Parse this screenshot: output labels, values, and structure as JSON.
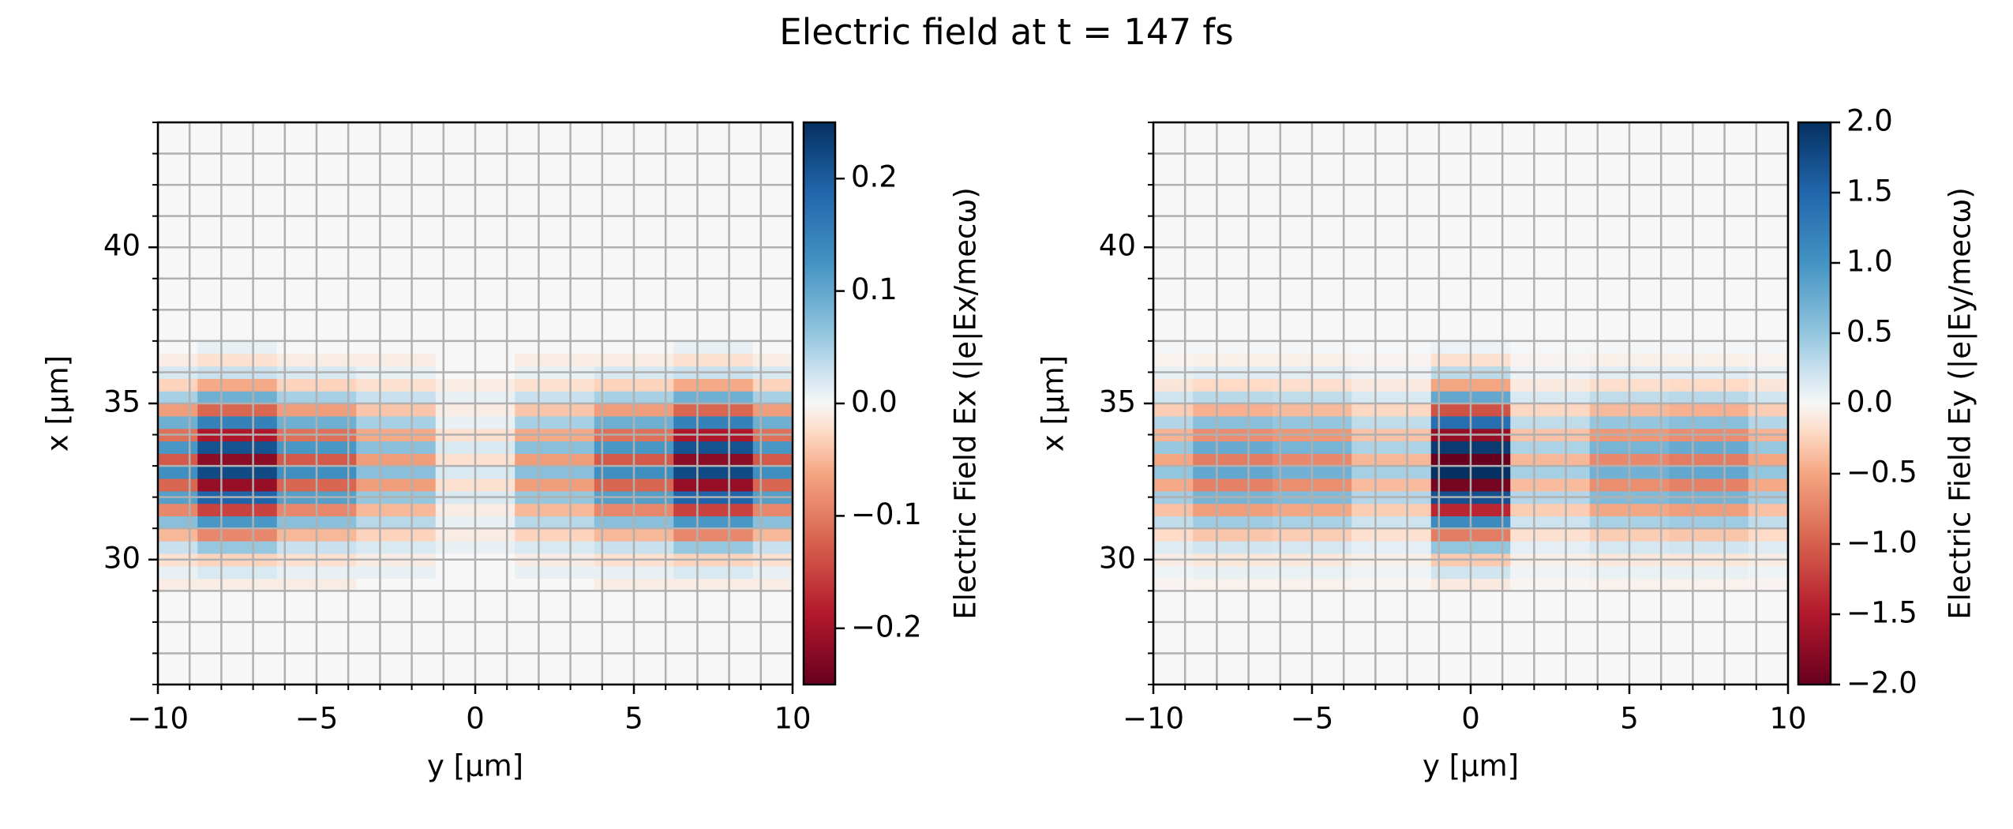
{
  "title": "Electric field at t = 147 fs",
  "chart_data": [
    {
      "type": "heatmap",
      "colormap": "RdBu",
      "grid": true,
      "xlabel": "y [µm]",
      "ylabel": "x [µm]",
      "colorbar_label": "Electric Field Ex (|e|Ex/mecω)",
      "xlim": [
        -10,
        10
      ],
      "ylim": [
        26,
        44
      ],
      "xticks": [
        {
          "value": -10,
          "label": "−10"
        },
        {
          "value": -5,
          "label": "−5"
        },
        0,
        5,
        10
      ],
      "yticks": [
        30,
        35,
        40
      ],
      "xminor": [
        -10,
        -9,
        -8,
        -7,
        -6,
        -5,
        -4,
        -3,
        -2,
        -1,
        0,
        1,
        2,
        3,
        4,
        5,
        6,
        7,
        8,
        9,
        10
      ],
      "yminor": [
        26,
        27,
        28,
        29,
        30,
        31,
        32,
        33,
        34,
        35,
        36,
        37,
        38,
        39,
        40,
        41,
        42,
        43,
        44
      ],
      "clim": [
        -0.25,
        0.25
      ],
      "cticks": [
        0.2,
        0.1,
        {
          "value": 0,
          "label": "0.0"
        },
        {
          "value": -0.1,
          "label": "−0.1"
        },
        {
          "value": -0.2,
          "label": "−0.2"
        }
      ],
      "x": [
        -10,
        -7.5,
        -5,
        -2.5,
        0,
        2.5,
        5,
        7.5,
        10
      ],
      "y": [
        29.2,
        29.6,
        30.0,
        30.4,
        30.8,
        31.2,
        31.6,
        32.0,
        32.4,
        32.8,
        33.2,
        33.6,
        34.0,
        34.4,
        34.8,
        35.2,
        35.6,
        36.0,
        36.4,
        36.8
      ],
      "z": [
        [
          -0.01,
          -0.01,
          -0.01,
          0,
          0,
          0,
          -0.01,
          -0.01,
          -0.01
        ],
        [
          0.01,
          0.02,
          0.01,
          0.01,
          0,
          0.01,
          0.01,
          0.02,
          0.01
        ],
        [
          -0.02,
          -0.03,
          -0.02,
          -0.01,
          0,
          -0.01,
          -0.02,
          -0.03,
          -0.02
        ],
        [
          0.03,
          0.06,
          0.03,
          0.02,
          0.01,
          0.02,
          0.03,
          0.06,
          0.03
        ],
        [
          -0.05,
          -0.09,
          -0.05,
          -0.03,
          -0.01,
          -0.03,
          -0.05,
          -0.09,
          -0.05
        ],
        [
          0.07,
          0.12,
          0.07,
          0.04,
          0.01,
          0.04,
          0.07,
          0.12,
          0.07
        ],
        [
          -0.09,
          -0.15,
          -0.09,
          -0.05,
          -0.01,
          -0.05,
          -0.09,
          -0.15,
          -0.09
        ],
        [
          0.11,
          0.19,
          0.11,
          0.06,
          0.02,
          0.06,
          0.11,
          0.19,
          0.11
        ],
        [
          -0.12,
          -0.21,
          -0.12,
          -0.07,
          -0.02,
          -0.07,
          -0.12,
          -0.21,
          -0.12
        ],
        [
          0.13,
          0.22,
          0.13,
          0.07,
          0.02,
          0.07,
          0.13,
          0.22,
          0.13
        ],
        [
          -0.13,
          -0.22,
          -0.13,
          -0.07,
          -0.02,
          -0.07,
          -0.13,
          -0.22,
          -0.13
        ],
        [
          0.12,
          0.21,
          0.12,
          0.07,
          0.02,
          0.07,
          0.12,
          0.21,
          0.12
        ],
        [
          -0.11,
          -0.19,
          -0.11,
          -0.06,
          -0.02,
          -0.06,
          -0.11,
          -0.19,
          -0.11
        ],
        [
          0.09,
          0.15,
          0.09,
          0.05,
          0.01,
          0.05,
          0.09,
          0.15,
          0.09
        ],
        [
          -0.07,
          -0.12,
          -0.07,
          -0.04,
          -0.01,
          -0.04,
          -0.07,
          -0.12,
          -0.07
        ],
        [
          0.05,
          0.09,
          0.05,
          0.03,
          0.01,
          0.03,
          0.05,
          0.09,
          0.05
        ],
        [
          -0.03,
          -0.06,
          -0.03,
          -0.02,
          -0.01,
          -0.02,
          -0.03,
          -0.06,
          -0.03
        ],
        [
          0.02,
          0.03,
          0.02,
          0.01,
          0,
          0.01,
          0.02,
          0.03,
          0.02
        ],
        [
          -0.01,
          -0.02,
          -0.01,
          -0.01,
          0,
          -0.01,
          -0.01,
          -0.02,
          -0.01
        ],
        [
          0,
          0.01,
          0,
          0,
          0,
          0,
          0,
          0.01,
          0
        ]
      ]
    },
    {
      "type": "heatmap",
      "colormap": "RdBu",
      "grid": true,
      "xlabel": "y [µm]",
      "ylabel": "x [µm]",
      "colorbar_label": "Electric Field Ey (|e|Ey/mecω)",
      "xlim": [
        -10,
        10
      ],
      "ylim": [
        26,
        44
      ],
      "xticks": [
        {
          "value": -10,
          "label": "−10"
        },
        {
          "value": -5,
          "label": "−5"
        },
        0,
        5,
        10
      ],
      "yticks": [
        30,
        35,
        40
      ],
      "xminor": [
        -10,
        -9,
        -8,
        -7,
        -6,
        -5,
        -4,
        -3,
        -2,
        -1,
        0,
        1,
        2,
        3,
        4,
        5,
        6,
        7,
        8,
        9,
        10
      ],
      "yminor": [
        26,
        27,
        28,
        29,
        30,
        31,
        32,
        33,
        34,
        35,
        36,
        37,
        38,
        39,
        40,
        41,
        42,
        43,
        44
      ],
      "clim": [
        -2,
        2
      ],
      "cticks": [
        {
          "value": 2,
          "label": "2.0"
        },
        1.5,
        {
          "value": 1,
          "label": "1.0"
        },
        0.5,
        {
          "value": 0,
          "label": "0.0"
        },
        {
          "value": -0.5,
          "label": "−0.5"
        },
        {
          "value": -1,
          "label": "−1.0"
        },
        {
          "value": -1.5,
          "label": "−1.5"
        },
        {
          "value": -2,
          "label": "−2.0"
        }
      ],
      "x": [
        -10,
        -7.5,
        -5,
        -2.5,
        0,
        2.5,
        5,
        7.5,
        10
      ],
      "y": [
        29.2,
        29.6,
        30.0,
        30.4,
        30.8,
        31.2,
        31.6,
        32.0,
        32.4,
        32.8,
        33.2,
        33.6,
        34.0,
        34.4,
        34.8,
        35.2,
        35.6,
        36.0,
        36.4,
        36.8
      ],
      "z": [
        [
          -0.03,
          -0.04,
          -0.04,
          -0.02,
          -0.1,
          -0.02,
          -0.04,
          -0.04,
          -0.03
        ],
        [
          0.05,
          0.08,
          0.07,
          0.04,
          0.2,
          0.04,
          0.07,
          0.08,
          0.05
        ],
        [
          -0.08,
          -0.12,
          -0.11,
          -0.06,
          -0.3,
          -0.06,
          -0.11,
          -0.12,
          -0.08
        ],
        [
          0.13,
          0.2,
          0.18,
          0.1,
          0.5,
          0.1,
          0.18,
          0.2,
          0.13
        ],
        [
          -0.2,
          -0.32,
          -0.28,
          -0.16,
          -0.8,
          -0.16,
          -0.28,
          -0.32,
          -0.2
        ],
        [
          0.28,
          0.44,
          0.39,
          0.22,
          1.1,
          0.22,
          0.39,
          0.44,
          0.28
        ],
        [
          -0.35,
          -0.56,
          -0.49,
          -0.28,
          -1.4,
          -0.28,
          -0.49,
          -0.56,
          -0.35
        ],
        [
          0.43,
          0.68,
          0.6,
          0.34,
          1.7,
          0.34,
          0.6,
          0.68,
          0.43
        ],
        [
          -0.48,
          -0.76,
          -0.67,
          -0.38,
          -1.9,
          -0.38,
          -0.67,
          -0.76,
          -0.48
        ],
        [
          0.5,
          0.8,
          0.7,
          0.4,
          2,
          0.4,
          0.7,
          0.8,
          0.5
        ],
        [
          -0.5,
          -0.8,
          -0.7,
          -0.4,
          -2,
          -0.4,
          -0.7,
          -0.8,
          -0.5
        ],
        [
          0.48,
          0.76,
          0.67,
          0.38,
          1.9,
          0.38,
          0.67,
          0.76,
          0.48
        ],
        [
          -0.43,
          -0.68,
          -0.6,
          -0.34,
          -1.7,
          -0.34,
          -0.6,
          -0.68,
          -0.43
        ],
        [
          0.35,
          0.56,
          0.49,
          0.28,
          1.4,
          0.28,
          0.49,
          0.56,
          0.35
        ],
        [
          -0.28,
          -0.44,
          -0.39,
          -0.22,
          -1.1,
          -0.22,
          -0.39,
          -0.44,
          -0.28
        ],
        [
          0.2,
          0.32,
          0.28,
          0.16,
          0.8,
          0.16,
          0.28,
          0.32,
          0.2
        ],
        [
          -0.13,
          -0.2,
          -0.18,
          -0.1,
          -0.5,
          -0.1,
          -0.18,
          -0.2,
          -0.13
        ],
        [
          0.08,
          0.12,
          0.11,
          0.06,
          0.3,
          0.06,
          0.11,
          0.12,
          0.08
        ],
        [
          -0.04,
          -0.06,
          -0.06,
          -0.03,
          -0.16,
          -0.03,
          -0.06,
          -0.06,
          -0.04
        ],
        [
          0.02,
          0.02,
          0.02,
          0.01,
          0.06,
          0.01,
          0.02,
          0.02,
          0.02
        ]
      ]
    }
  ]
}
